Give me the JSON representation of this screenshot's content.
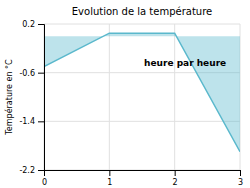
{
  "chart_data": {
    "type": "area",
    "title": "Evolution de la température",
    "ylabel": "Température en °C",
    "annotation": "heure par heure",
    "x": [
      0,
      1,
      2,
      3
    ],
    "values": [
      -0.5,
      0.05,
      0.05,
      -1.9
    ],
    "color": "#5ab8cc",
    "xlim": [
      0,
      3
    ],
    "ylim": [
      -2.2,
      0.2
    ],
    "xticks": [
      0,
      1,
      2,
      3
    ],
    "yticks": [
      0.2,
      -0.6,
      -1.4,
      -2.2
    ],
    "grid": true
  }
}
